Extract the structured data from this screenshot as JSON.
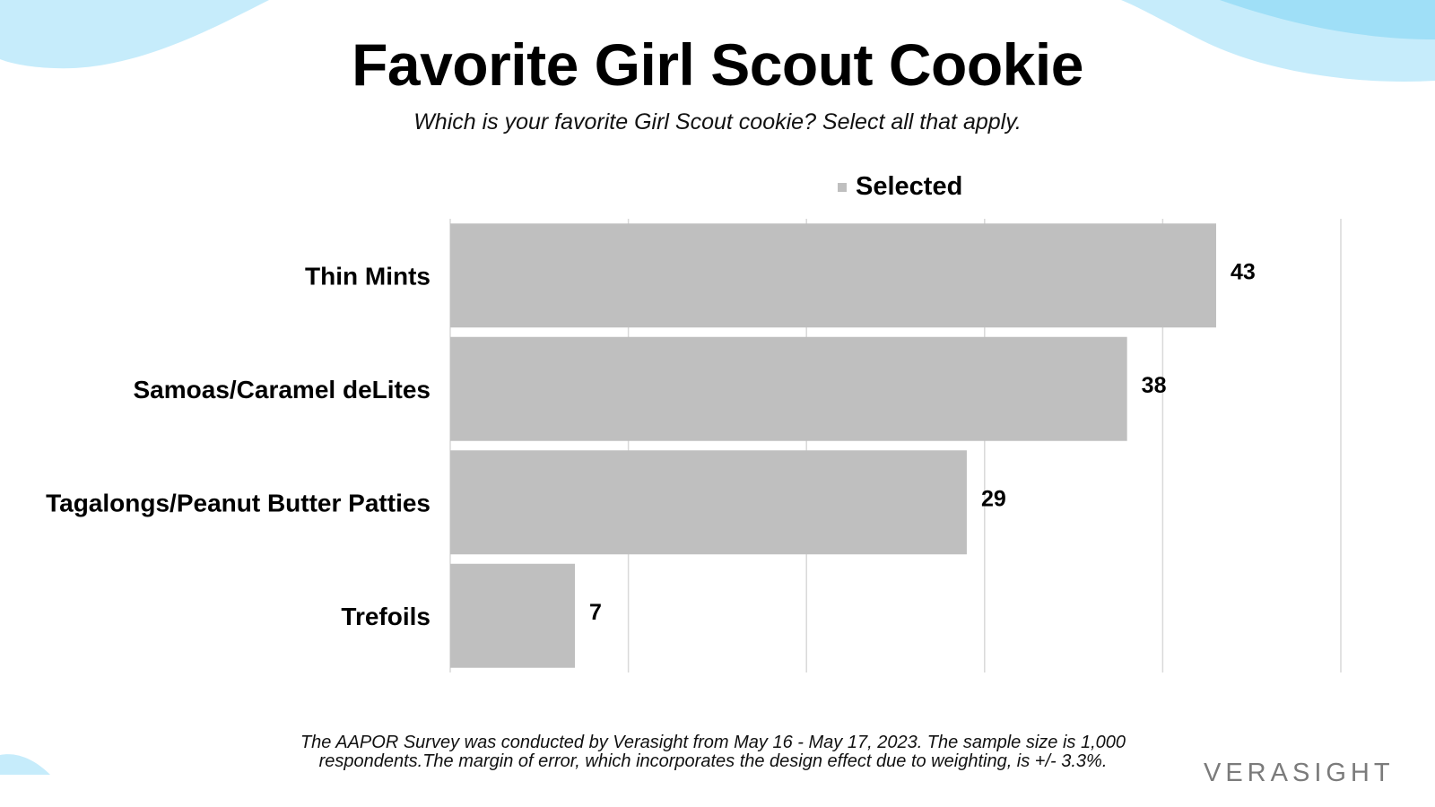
{
  "title": "Favorite Girl Scout Cookie",
  "subtitle": "Which is your favorite Girl Scout cookie? Select all that apply.",
  "legend": {
    "label": "Selected"
  },
  "footnote": "The AAPOR Survey was conducted by Verasight from May 16 - May 17, 2023. The sample size is 1,000 respondents.The margin of error, which incorporates the design effect due to weighting, is +/- 3.3%.",
  "brand": {
    "logo_text": "VERASIGHT"
  },
  "colors": {
    "bar": "#bfbfbf",
    "gridline": "#d9d9d9",
    "legend_swatch": "#bfbfbf",
    "wave": "#c6ecfb",
    "wave_accent": "#9fdff7",
    "logo": "#7b7b7b"
  },
  "chart_data": {
    "type": "bar",
    "orientation": "horizontal",
    "categories": [
      "Thin Mints",
      "Samoas/Caramel deLites",
      "Tagalongs/Peanut Butter Patties",
      "Trefoils"
    ],
    "series": [
      {
        "name": "Selected",
        "values": [
          43,
          38,
          29,
          7
        ]
      }
    ],
    "xlim": [
      0,
      50
    ],
    "grid": true,
    "legend_position": "top",
    "data_labels": true
  }
}
